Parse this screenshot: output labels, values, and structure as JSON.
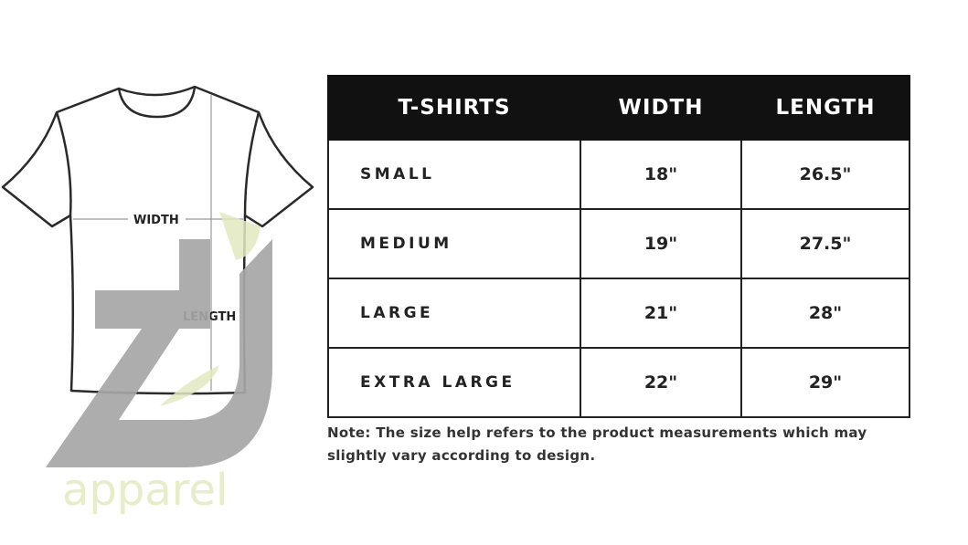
{
  "diagram": {
    "width_label": "WIDTH",
    "length_label": "LENGTH"
  },
  "logo": {
    "text": "apparel",
    "gray": "#a6a6a6",
    "green": "#e2e8bf"
  },
  "table": {
    "headers": [
      "T-SHIRTS",
      "WIDTH",
      "LENGTH"
    ],
    "rows": [
      {
        "size": "SMALL",
        "width": "18\"",
        "length": "26.5\""
      },
      {
        "size": "MEDIUM",
        "width": "19\"",
        "length": "27.5\""
      },
      {
        "size": "LARGE",
        "width": "21\"",
        "length": "28\""
      },
      {
        "size": "EXTRA LARGE",
        "width": "22\"",
        "length": "29\""
      }
    ]
  },
  "note": "Note: The size help refers to the product measurements which may slightly vary according to design."
}
